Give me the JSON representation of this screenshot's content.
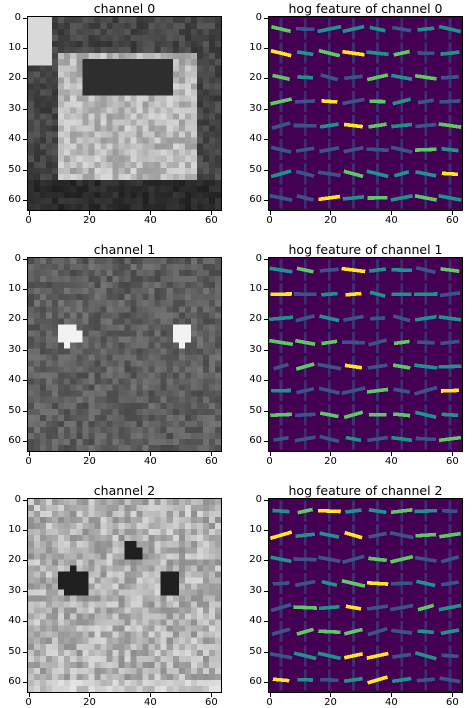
{
  "figure": {
    "panels": [
      {
        "id": "ch0",
        "title": "channel 0",
        "kind": "gray",
        "variant": 0
      },
      {
        "id": "hog0",
        "title": "hog feature of channel 0",
        "kind": "hog",
        "variant": 0
      },
      {
        "id": "ch1",
        "title": "channel 1",
        "kind": "gray",
        "variant": 1
      },
      {
        "id": "hog1",
        "title": "hog feature of channel 1",
        "kind": "hog",
        "variant": 1
      },
      {
        "id": "ch2",
        "title": "channel 2",
        "kind": "gray",
        "variant": 2
      },
      {
        "id": "hog2",
        "title": "hog feature of channel 2",
        "kind": "hog",
        "variant": 2
      }
    ],
    "yticks": [
      "0",
      "10",
      "20",
      "30",
      "40",
      "50",
      "60"
    ],
    "xticks": [
      "0",
      "20",
      "40",
      "60"
    ],
    "colors": {
      "hog_bg": "#440154",
      "hog_mid": "#3b528b",
      "hog_teal": "#21918c",
      "hog_green": "#5ec962",
      "hog_yellow": "#fde725"
    }
  }
}
